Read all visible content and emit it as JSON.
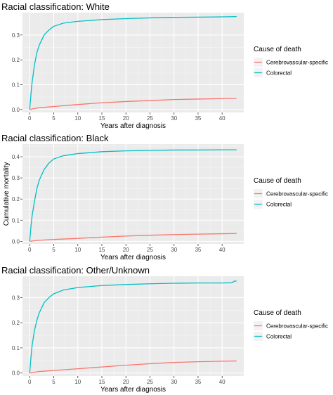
{
  "legend": {
    "title": "Cause of death",
    "entries": [
      {
        "name": "Cerebrovascular-specific",
        "color": "#F8766D"
      },
      {
        "name": "Colorectal",
        "color": "#00BFC4"
      }
    ]
  },
  "chart_data": [
    {
      "type": "line",
      "title": "Racial classification: White",
      "xlabel": "Years after diagnosis",
      "ylabel": "Cumulative mortality",
      "xlim": [
        -1.5,
        44.5
      ],
      "ylim": [
        -0.012,
        0.39
      ],
      "x_ticks": [
        0,
        5,
        10,
        15,
        20,
        25,
        30,
        35,
        40
      ],
      "y_ticks": [
        0.0,
        0.1,
        0.2,
        0.3
      ],
      "y_tick_labels": [
        "0.0",
        "0.1",
        "0.2",
        "0.3"
      ],
      "grid": true,
      "legend_position": "right",
      "series": [
        {
          "name": "Cerebrovascular-specific",
          "color": "#F8766D",
          "x": [
            0,
            1,
            2,
            5,
            10,
            15,
            20,
            25,
            30,
            35,
            40,
            43
          ],
          "y": [
            0.0,
            0.004,
            0.007,
            0.012,
            0.02,
            0.027,
            0.032,
            0.036,
            0.04,
            0.042,
            0.044,
            0.045
          ]
        },
        {
          "name": "Colorectal",
          "color": "#00BFC4",
          "x": [
            0,
            0.25,
            0.5,
            1,
            1.5,
            2,
            3,
            4,
            5,
            7,
            10,
            15,
            20,
            25,
            30,
            35,
            40,
            43
          ],
          "y": [
            0.0,
            0.06,
            0.11,
            0.18,
            0.23,
            0.26,
            0.3,
            0.32,
            0.335,
            0.348,
            0.355,
            0.362,
            0.366,
            0.369,
            0.371,
            0.372,
            0.373,
            0.374
          ]
        }
      ]
    },
    {
      "type": "line",
      "title": "Racial classification: Black",
      "xlabel": "Years after diagnosis",
      "ylabel": "Cumulative mortality",
      "xlim": [
        -1.5,
        44.5
      ],
      "ylim": [
        -0.012,
        0.46
      ],
      "x_ticks": [
        0,
        5,
        10,
        15,
        20,
        25,
        30,
        35,
        40
      ],
      "y_ticks": [
        0.0,
        0.1,
        0.2,
        0.3,
        0.4
      ],
      "y_tick_labels": [
        "0.0",
        "0.1",
        "0.2",
        "0.3",
        "0.4"
      ],
      "grid": true,
      "legend_position": "right",
      "series": [
        {
          "name": "Cerebrovascular-specific",
          "color": "#F8766D",
          "x": [
            0,
            1,
            2,
            5,
            10,
            15,
            20,
            25,
            30,
            35,
            40,
            43
          ],
          "y": [
            0.0,
            0.003,
            0.005,
            0.009,
            0.014,
            0.02,
            0.025,
            0.029,
            0.032,
            0.034,
            0.036,
            0.037
          ]
        },
        {
          "name": "Colorectal",
          "color": "#00BFC4",
          "x": [
            0,
            0.25,
            0.5,
            1,
            1.5,
            2,
            3,
            4,
            5,
            7,
            10,
            15,
            20,
            25,
            30,
            35,
            40,
            43
          ],
          "y": [
            0.0,
            0.07,
            0.12,
            0.19,
            0.25,
            0.29,
            0.34,
            0.37,
            0.39,
            0.405,
            0.415,
            0.424,
            0.428,
            0.43,
            0.432,
            0.432,
            0.433,
            0.433
          ]
        }
      ]
    },
    {
      "type": "line",
      "title": "Racial classification: Other/Unknown",
      "xlabel": "Years after diagnosis",
      "ylabel": "Cumulative mortality",
      "xlim": [
        -1.5,
        44.5
      ],
      "ylim": [
        -0.012,
        0.385
      ],
      "x_ticks": [
        0,
        5,
        10,
        15,
        20,
        25,
        30,
        35,
        40
      ],
      "y_ticks": [
        0.0,
        0.1,
        0.2,
        0.3
      ],
      "y_tick_labels": [
        "0.0",
        "0.1",
        "0.2",
        "0.3"
      ],
      "grid": true,
      "legend_position": "right",
      "series": [
        {
          "name": "Cerebrovascular-specific",
          "color": "#F8766D",
          "x": [
            0,
            1,
            2,
            5,
            10,
            15,
            20,
            25,
            30,
            35,
            40,
            43
          ],
          "y": [
            0.0,
            0.003,
            0.006,
            0.01,
            0.017,
            0.024,
            0.031,
            0.037,
            0.042,
            0.045,
            0.047,
            0.048
          ]
        },
        {
          "name": "Colorectal",
          "color": "#00BFC4",
          "x": [
            0,
            0.25,
            0.5,
            1,
            1.5,
            2,
            3,
            4,
            5,
            7,
            10,
            15,
            20,
            25,
            30,
            35,
            40,
            42,
            42.5,
            43
          ],
          "y": [
            0.0,
            0.06,
            0.11,
            0.17,
            0.21,
            0.24,
            0.28,
            0.3,
            0.315,
            0.33,
            0.34,
            0.348,
            0.352,
            0.355,
            0.357,
            0.358,
            0.358,
            0.359,
            0.365,
            0.366
          ]
        }
      ]
    }
  ]
}
